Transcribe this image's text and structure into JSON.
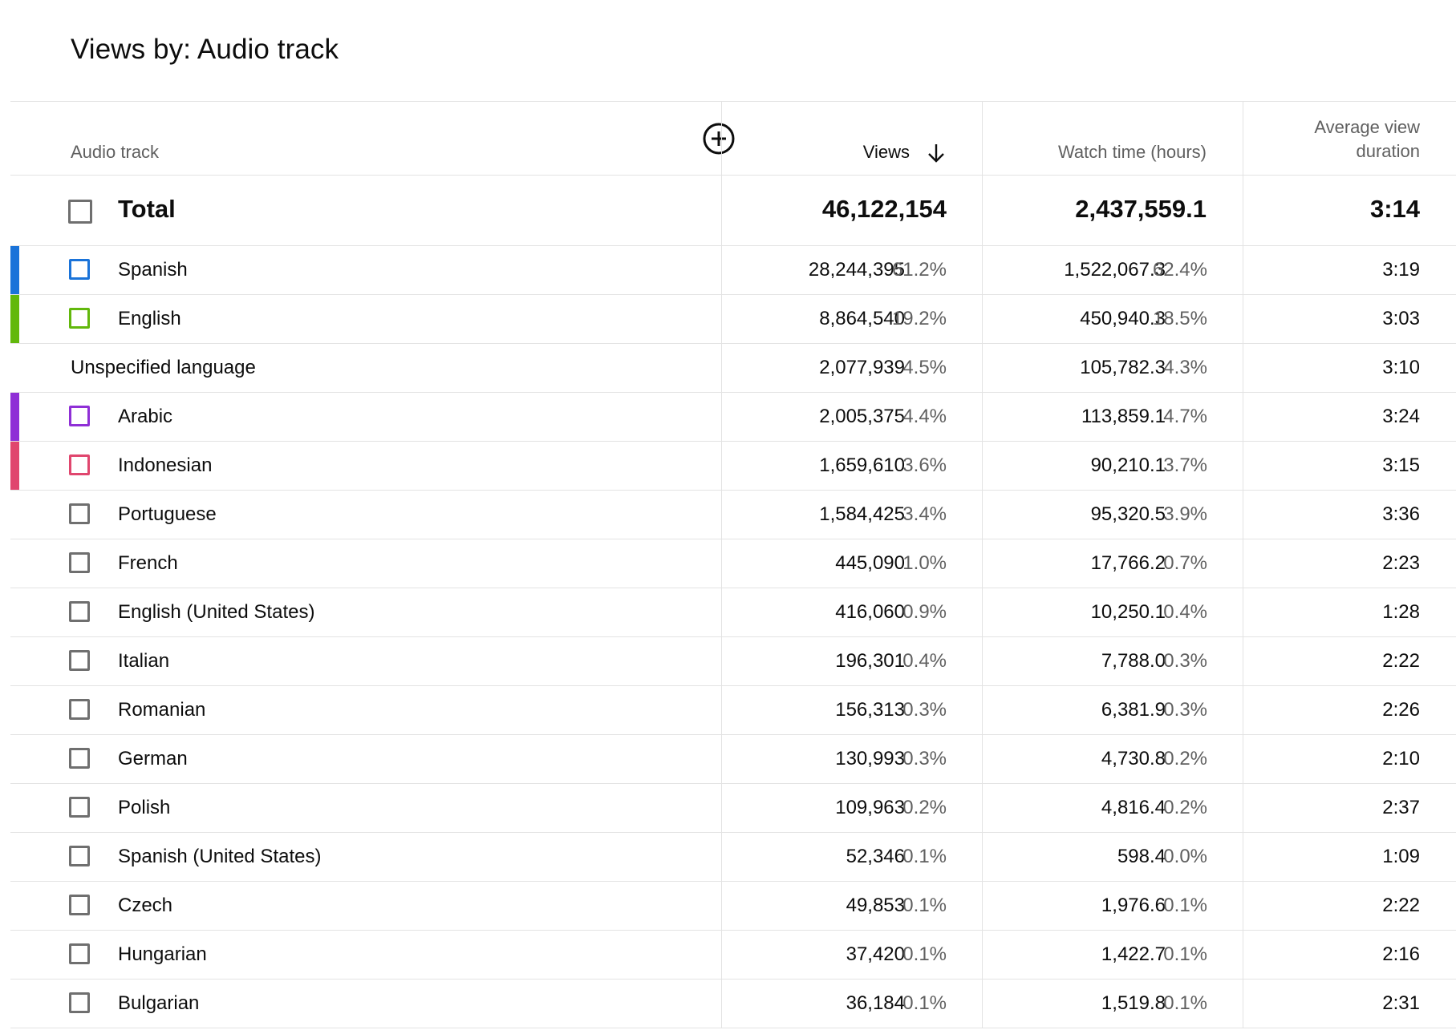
{
  "page_title": "Views by: Audio track",
  "header": {
    "name_col": "Audio track",
    "views_col": "Views",
    "watch_col": "Watch time (hours)",
    "avg_col_line1": "Average view",
    "avg_col_line2": "duration",
    "add_column_icon": "add-circle-icon",
    "sort_icon": "arrow-down-icon"
  },
  "total": {
    "label": "Total",
    "views": "46,122,154",
    "watch": "2,437,559.1",
    "avg": "3:14"
  },
  "rows": [
    {
      "name": "Spanish",
      "views": "28,244,395",
      "views_pct": "61.2%",
      "watch": "1,522,067.3",
      "watch_pct": "62.4%",
      "avg": "3:19",
      "color": "#1a73d9",
      "checkbox": true
    },
    {
      "name": "English",
      "views": "8,864,540",
      "views_pct": "19.2%",
      "watch": "450,940.3",
      "watch_pct": "18.5%",
      "avg": "3:03",
      "color": "#62b80c",
      "checkbox": true
    },
    {
      "name": "Unspecified language",
      "views": "2,077,939",
      "views_pct": "4.5%",
      "watch": "105,782.3",
      "watch_pct": "4.3%",
      "avg": "3:10",
      "color": "",
      "checkbox": false
    },
    {
      "name": "Arabic",
      "views": "2,005,375",
      "views_pct": "4.4%",
      "watch": "113,859.1",
      "watch_pct": "4.7%",
      "avg": "3:24",
      "color": "#8f2fd6",
      "checkbox": true
    },
    {
      "name": "Indonesian",
      "views": "1,659,610",
      "views_pct": "3.6%",
      "watch": "90,210.1",
      "watch_pct": "3.7%",
      "avg": "3:15",
      "color": "#e0466e",
      "checkbox": true
    },
    {
      "name": "Portuguese",
      "views": "1,584,425",
      "views_pct": "3.4%",
      "watch": "95,320.5",
      "watch_pct": "3.9%",
      "avg": "3:36",
      "color": "",
      "checkbox": true
    },
    {
      "name": "French",
      "views": "445,090",
      "views_pct": "1.0%",
      "watch": "17,766.2",
      "watch_pct": "0.7%",
      "avg": "2:23",
      "color": "",
      "checkbox": true
    },
    {
      "name": "English (United States)",
      "views": "416,060",
      "views_pct": "0.9%",
      "watch": "10,250.1",
      "watch_pct": "0.4%",
      "avg": "1:28",
      "color": "",
      "checkbox": true
    },
    {
      "name": "Italian",
      "views": "196,301",
      "views_pct": "0.4%",
      "watch": "7,788.0",
      "watch_pct": "0.3%",
      "avg": "2:22",
      "color": "",
      "checkbox": true
    },
    {
      "name": "Romanian",
      "views": "156,313",
      "views_pct": "0.3%",
      "watch": "6,381.9",
      "watch_pct": "0.3%",
      "avg": "2:26",
      "color": "",
      "checkbox": true
    },
    {
      "name": "German",
      "views": "130,993",
      "views_pct": "0.3%",
      "watch": "4,730.8",
      "watch_pct": "0.2%",
      "avg": "2:10",
      "color": "",
      "checkbox": true
    },
    {
      "name": "Polish",
      "views": "109,963",
      "views_pct": "0.2%",
      "watch": "4,816.4",
      "watch_pct": "0.2%",
      "avg": "2:37",
      "color": "",
      "checkbox": true
    },
    {
      "name": "Spanish (United States)",
      "views": "52,346",
      "views_pct": "0.1%",
      "watch": "598.4",
      "watch_pct": "0.0%",
      "avg": "1:09",
      "color": "",
      "checkbox": true
    },
    {
      "name": "Czech",
      "views": "49,853",
      "views_pct": "0.1%",
      "watch": "1,976.6",
      "watch_pct": "0.1%",
      "avg": "2:22",
      "color": "",
      "checkbox": true
    },
    {
      "name": "Hungarian",
      "views": "37,420",
      "views_pct": "0.1%",
      "watch": "1,422.7",
      "watch_pct": "0.1%",
      "avg": "2:16",
      "color": "",
      "checkbox": true
    },
    {
      "name": "Bulgarian",
      "views": "36,184",
      "views_pct": "0.1%",
      "watch": "1,519.8",
      "watch_pct": "0.1%",
      "avg": "2:31",
      "color": "",
      "checkbox": true
    }
  ]
}
